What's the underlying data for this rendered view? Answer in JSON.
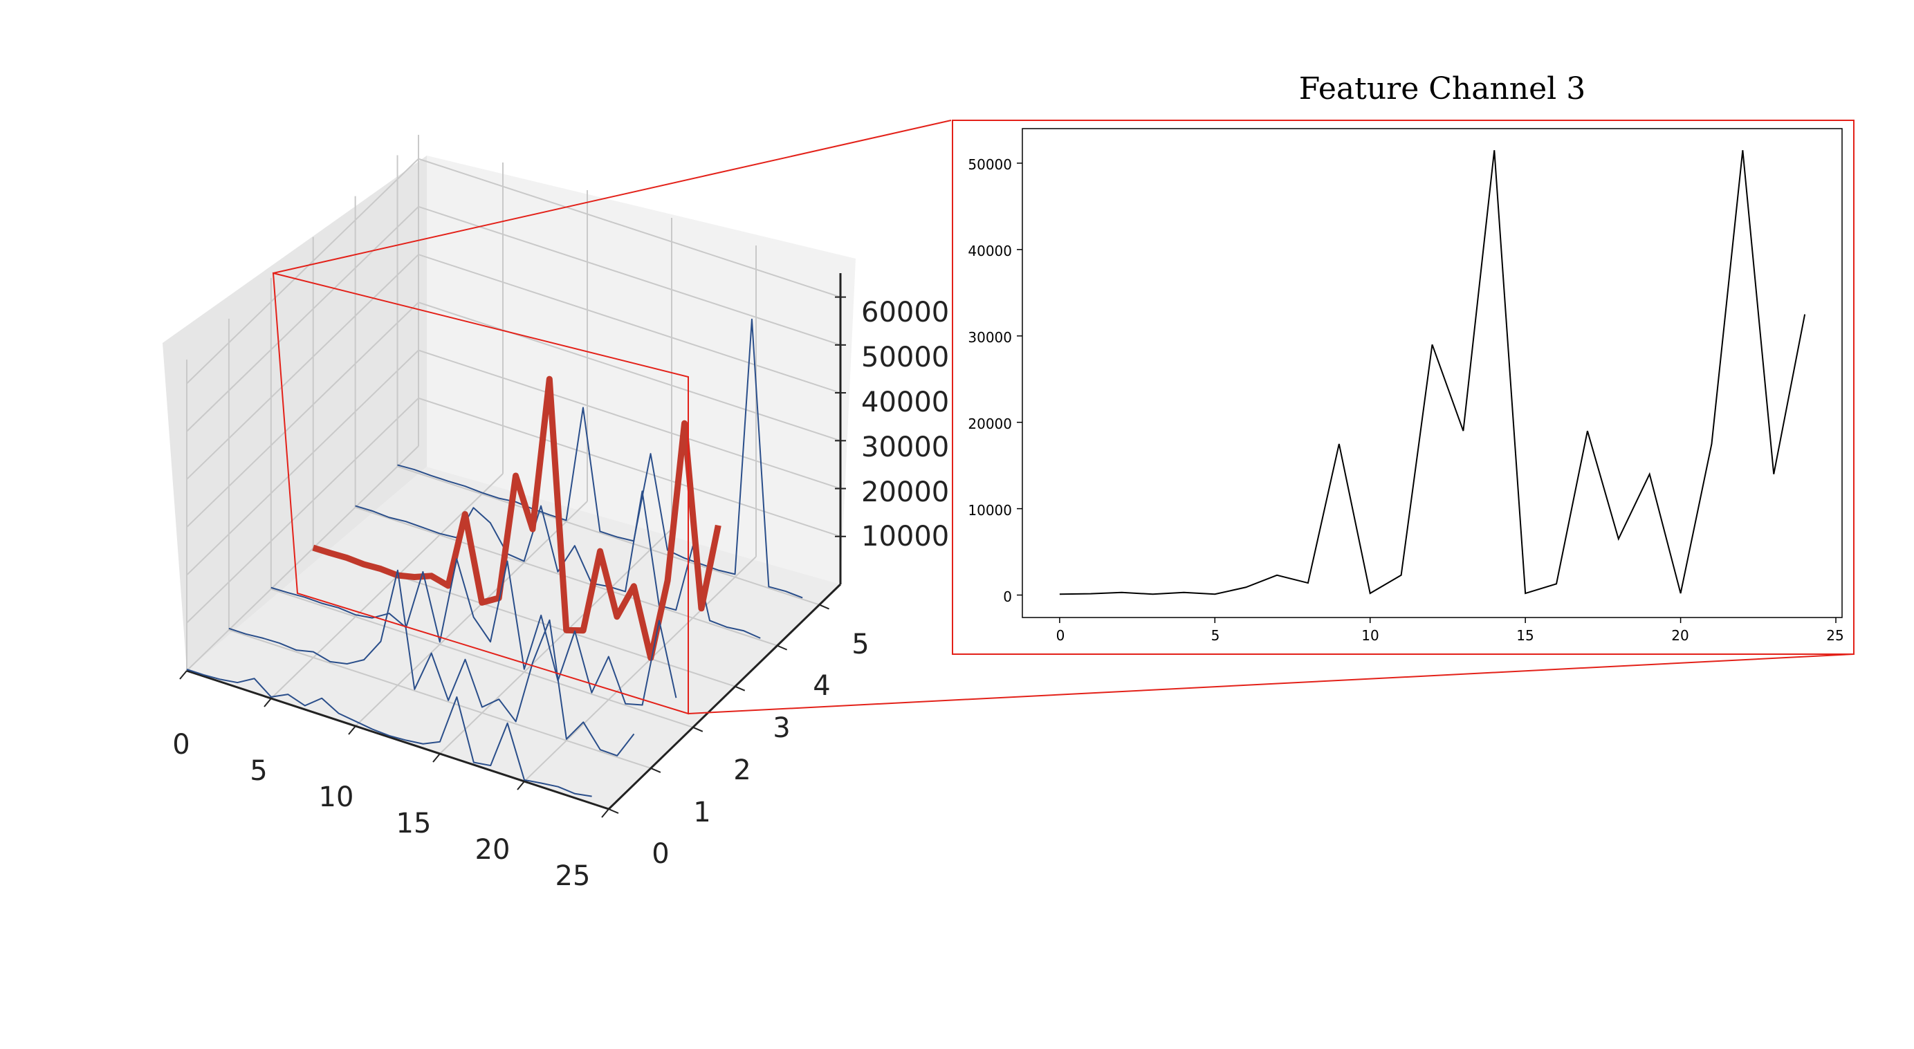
{
  "chart_data": [
    {
      "type": "line",
      "subtype": "3d-line",
      "title": "",
      "xlabel": "",
      "ylabel": "",
      "zlabel": "",
      "x": [
        0,
        1,
        2,
        3,
        4,
        5,
        6,
        7,
        8,
        9,
        10,
        11,
        12,
        13,
        14,
        15,
        16,
        17,
        18,
        19,
        20,
        21,
        22,
        23,
        24
      ],
      "x_ticks": [
        "0",
        "5",
        "10",
        "15",
        "20",
        "25"
      ],
      "y_ticks": [
        "0",
        "1",
        "2",
        "3",
        "4",
        "5"
      ],
      "z_ticks": [
        "10000",
        "20000",
        "30000",
        "40000",
        "50000",
        "60000"
      ],
      "xlim": [
        0,
        25
      ],
      "ylim": [
        0,
        5
      ],
      "zlim": [
        0,
        65000
      ],
      "grid": true,
      "colors": {
        "series": "#2a4e8a",
        "highlight": "#c0392b",
        "pane": "#efefef",
        "grid": "#c9c9c9"
      },
      "highlight_channel": 3,
      "series": [
        {
          "channel": 0,
          "values": [
            300,
            300,
            500,
            1000,
            3000,
            300,
            2000,
            800,
            3500,
            1500,
            1000,
            500,
            300,
            500,
            900,
            2500,
            13000,
            500,
            1000,
            11000,
            300,
            800,
            1200,
            900,
            1500
          ]
        },
        {
          "channel": 1,
          "values": [
            300,
            300,
            600,
            700,
            400,
            1200,
            300,
            1000,
            3000,
            8000,
            24000,
            300,
            9000,
            300,
            10000,
            1200,
            4000,
            500,
            14000,
            24000,
            300,
            5000,
            400,
            300,
            6000
          ]
        },
        {
          "channel": 2,
          "values": [
            300,
            400,
            600,
            500,
            700,
            400,
            900,
            3000,
            1200,
            14000,
            500,
            19000,
            8000,
            4000,
            22000,
            600,
            13000,
            500,
            12000,
            300,
            9000,
            300,
            1200,
            20000,
            5000
          ]
        },
        {
          "channel": 3,
          "values": [
            100,
            150,
            300,
            100,
            300,
            100,
            900,
            2300,
            1400,
            17500,
            200,
            2300,
            29000,
            19000,
            51500,
            200,
            1300,
            19000,
            6500,
            14000,
            200,
            17500,
            51500,
            14000,
            32500
          ]
        },
        {
          "channel": 4,
          "values": [
            300,
            400,
            200,
            500,
            400,
            300,
            600,
            8000,
            6000,
            700,
            300,
            13000,
            400,
            7000,
            300,
            800,
            900,
            23000,
            300,
            500,
            15000,
            600,
            400,
            800,
            400
          ]
        },
        {
          "channel": 5,
          "values": [
            300,
            500,
            400,
            400,
            500,
            300,
            300,
            700,
            400,
            300,
            300,
            25000,
            300,
            300,
            600,
            20000,
            1000,
            500,
            400,
            300,
            600,
            55000,
            300,
            500,
            300
          ]
        }
      ]
    },
    {
      "type": "line",
      "title": "Feature Channel 3",
      "xlabel": "",
      "ylabel": "",
      "x": [
        0,
        1,
        2,
        3,
        4,
        5,
        6,
        7,
        8,
        9,
        10,
        11,
        12,
        13,
        14,
        15,
        16,
        17,
        18,
        19,
        20,
        21,
        22,
        23,
        24
      ],
      "values": [
        100,
        150,
        300,
        100,
        300,
        100,
        900,
        2300,
        1400,
        17500,
        200,
        2300,
        29000,
        19000,
        51500,
        200,
        1300,
        19000,
        6500,
        14000,
        200,
        17500,
        51500,
        14000,
        32500
      ],
      "x_ticks": [
        "0",
        "5",
        "10",
        "15",
        "20",
        "25"
      ],
      "y_ticks": [
        "0",
        "10000",
        "20000",
        "30000",
        "40000",
        "50000"
      ],
      "xlim": [
        -1.2,
        25.2
      ],
      "ylim": [
        -2600,
        54000
      ],
      "grid": false,
      "colors": {
        "line": "#000000",
        "frame": "#e32119"
      }
    }
  ]
}
